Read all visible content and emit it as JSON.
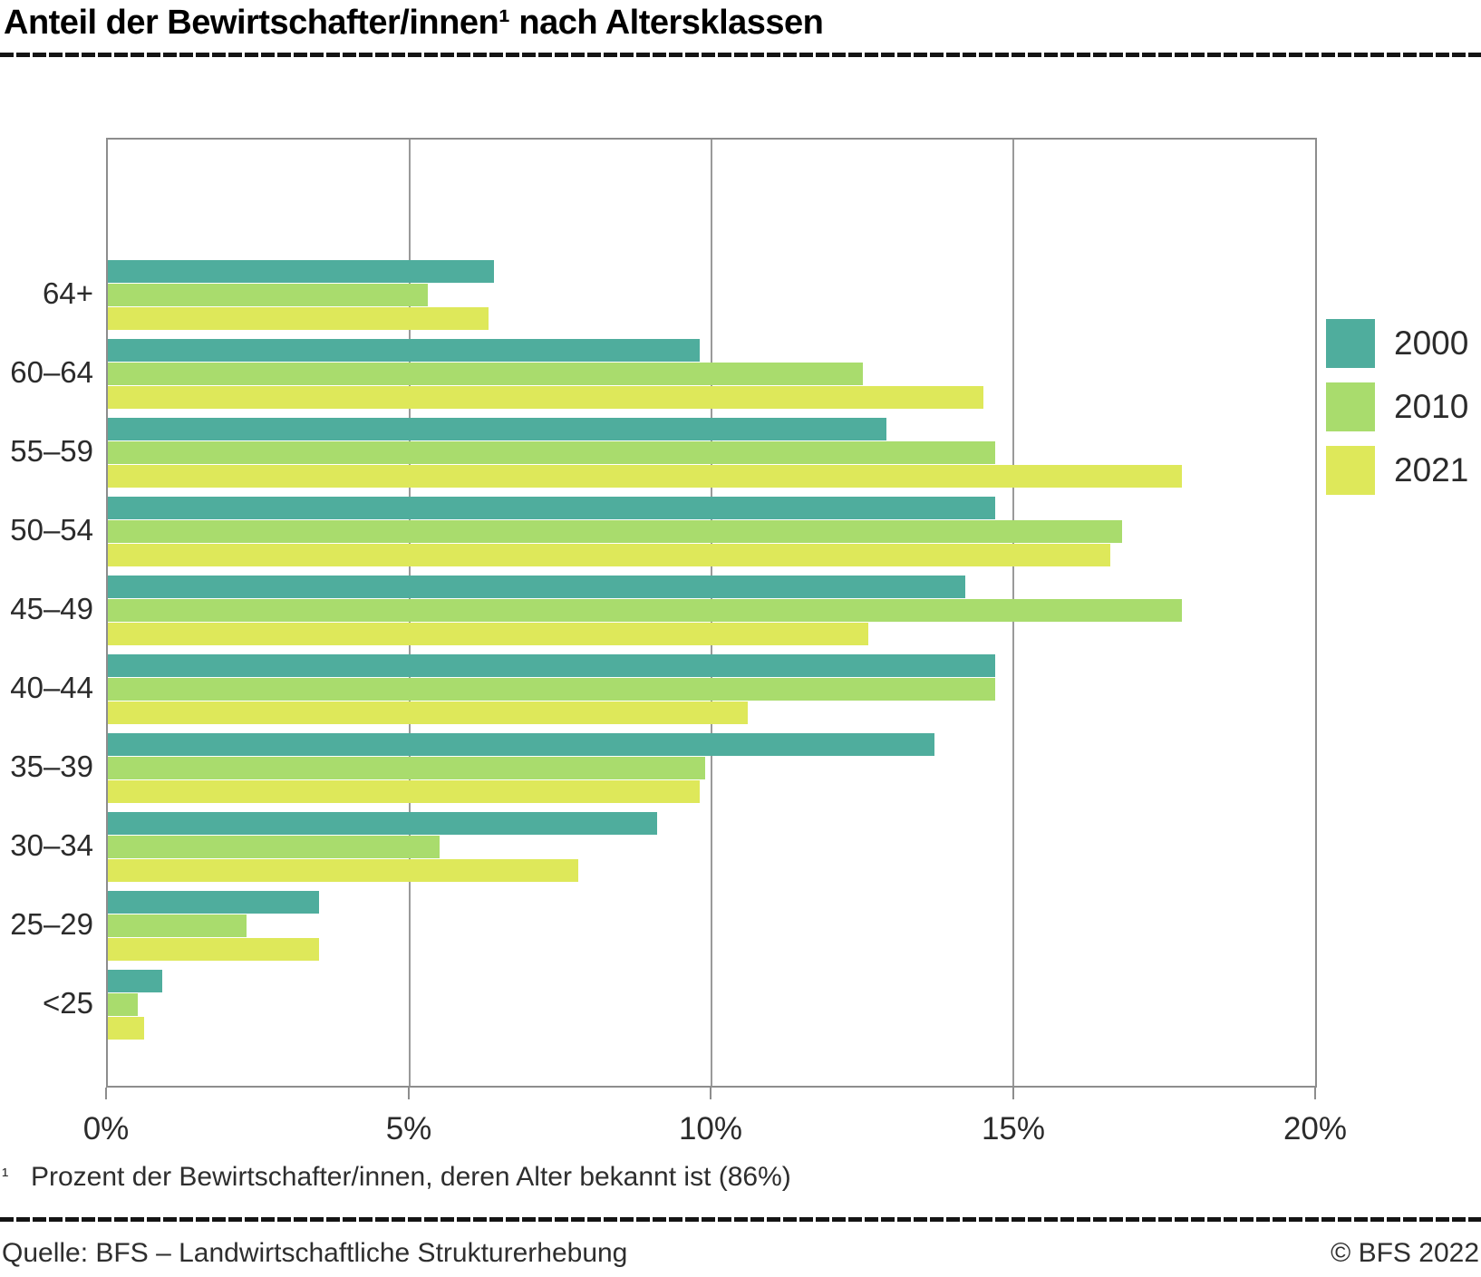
{
  "title": "Anteil der Bewirtschafter/innen¹ nach Altersklassen",
  "footnote": {
    "marker": "¹",
    "text": "Prozent der Bewirtschafter/innen, deren Alter bekannt ist (86%)"
  },
  "source": {
    "left": "Quelle: BFS – Landwirtschaftliche Strukturerhebung",
    "right": "© BFS 2022"
  },
  "chart_data": {
    "type": "bar",
    "orientation": "horizontal",
    "title": "Anteil der Bewirtschafter/innen nach Altersklassen",
    "categories": [
      "64+",
      "60–64",
      "55–59",
      "50–54",
      "45–49",
      "40–44",
      "35–39",
      "30–34",
      "25–29",
      "<25"
    ],
    "series": [
      {
        "name": "2000",
        "color": "#4FAD9D",
        "values": [
          6.4,
          9.8,
          12.9,
          14.7,
          14.2,
          14.7,
          13.7,
          9.1,
          3.5,
          0.9
        ]
      },
      {
        "name": "2010",
        "color": "#A9DC6D",
        "values": [
          5.3,
          12.5,
          14.7,
          16.8,
          17.8,
          14.7,
          9.9,
          5.5,
          2.3,
          0.5
        ]
      },
      {
        "name": "2021",
        "color": "#DEE85A",
        "values": [
          6.3,
          14.5,
          17.8,
          16.6,
          12.6,
          10.6,
          9.8,
          7.8,
          3.5,
          0.6
        ]
      }
    ],
    "x_ticks": [
      "0%",
      "5%",
      "10%",
      "15%",
      "20%"
    ],
    "xlim": [
      0,
      20
    ],
    "grid": true,
    "legend_position": "right",
    "unit": "percent"
  },
  "colors": {
    "grid": "#9a9a9a",
    "axis": "#8d8d8d",
    "rule": "#141414"
  }
}
